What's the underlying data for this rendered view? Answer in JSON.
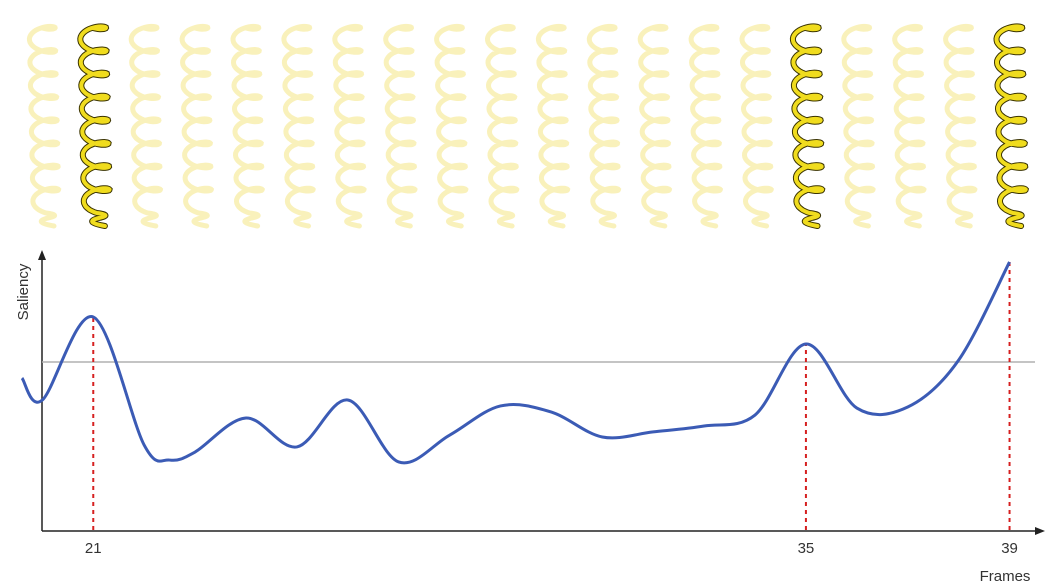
{
  "chart_data": {
    "type": "line",
    "y_label": "Saliency",
    "x_label": "Frames",
    "x": [
      19.6,
      20,
      21,
      22,
      22.5,
      23,
      24,
      25,
      26,
      27,
      28,
      29,
      30,
      31,
      32,
      33,
      34,
      35,
      36,
      37,
      38,
      39
    ],
    "values": [
      0.567,
      0.485,
      0.795,
      0.317,
      0.261,
      0.291,
      0.418,
      0.31,
      0.485,
      0.254,
      0.354,
      0.463,
      0.44,
      0.347,
      0.366,
      0.388,
      0.429,
      0.694,
      0.455,
      0.459,
      0.634,
      1.0
    ],
    "color": "#3b5bb5",
    "threshold": 0.627,
    "threshold_color": "#b0b0b0",
    "marker_color": "#d62020",
    "xlim": [
      19.6,
      39.5
    ],
    "ylim": [
      0,
      1
    ],
    "xticks": [
      21,
      35,
      39
    ],
    "grid": false
  }
}
